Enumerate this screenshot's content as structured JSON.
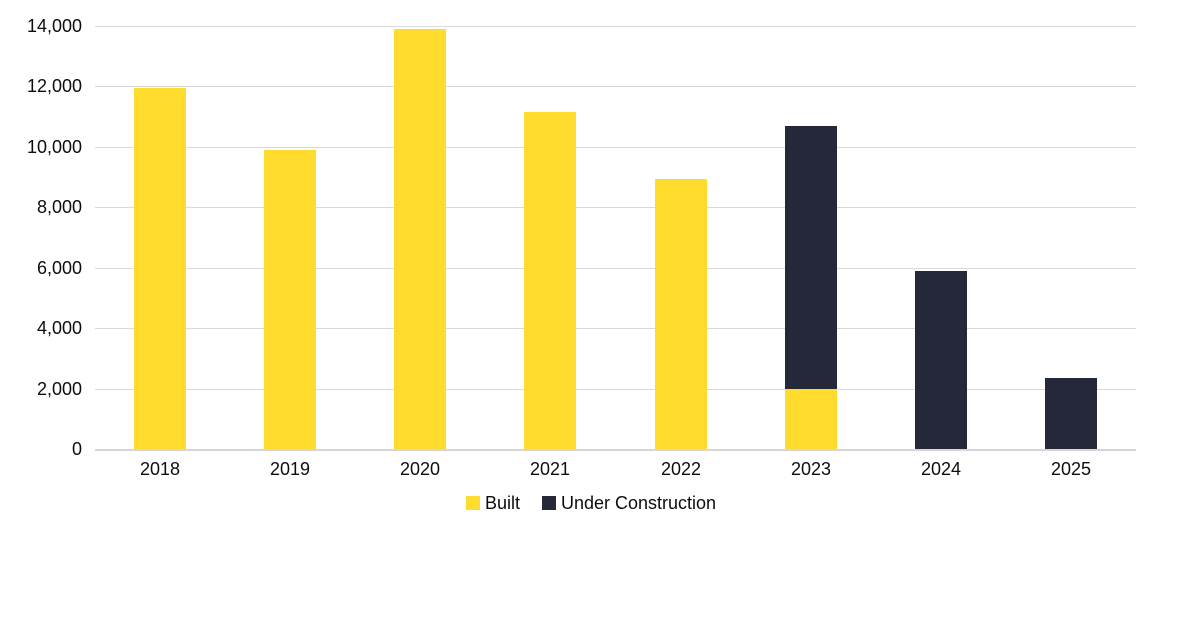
{
  "chart_data": {
    "type": "bar",
    "stacked": true,
    "title": "",
    "xlabel": "",
    "ylabel": "",
    "categories": [
      "2018",
      "2019",
      "2020",
      "2021",
      "2022",
      "2023",
      "2024",
      "2025"
    ],
    "series": [
      {
        "name": "Built",
        "color": "#FFDB2D",
        "values": [
          11950,
          9900,
          13900,
          11150,
          8950,
          2000,
          0,
          0
        ]
      },
      {
        "name": "Under Construction",
        "color": "#252839",
        "values": [
          0,
          0,
          0,
          0,
          0,
          8700,
          5900,
          2350
        ]
      }
    ],
    "ylim": [
      0,
      14000
    ],
    "ytick_step": 2000,
    "ytick_labels": [
      "0",
      "2,000",
      "4,000",
      "6,000",
      "8,000",
      "10,000",
      "12,000",
      "14,000"
    ],
    "grid": true,
    "gridline_color": "#D9D9D9",
    "axis_text_color": "#0D0D0D",
    "legend_position": "bottom-center",
    "legend": [
      {
        "label": "Built",
        "color": "#FFDB2D",
        "swatch_icon": "square-swatch-icon"
      },
      {
        "label": "Under Construction",
        "color": "#252839",
        "swatch_icon": "square-swatch-icon"
      }
    ]
  }
}
